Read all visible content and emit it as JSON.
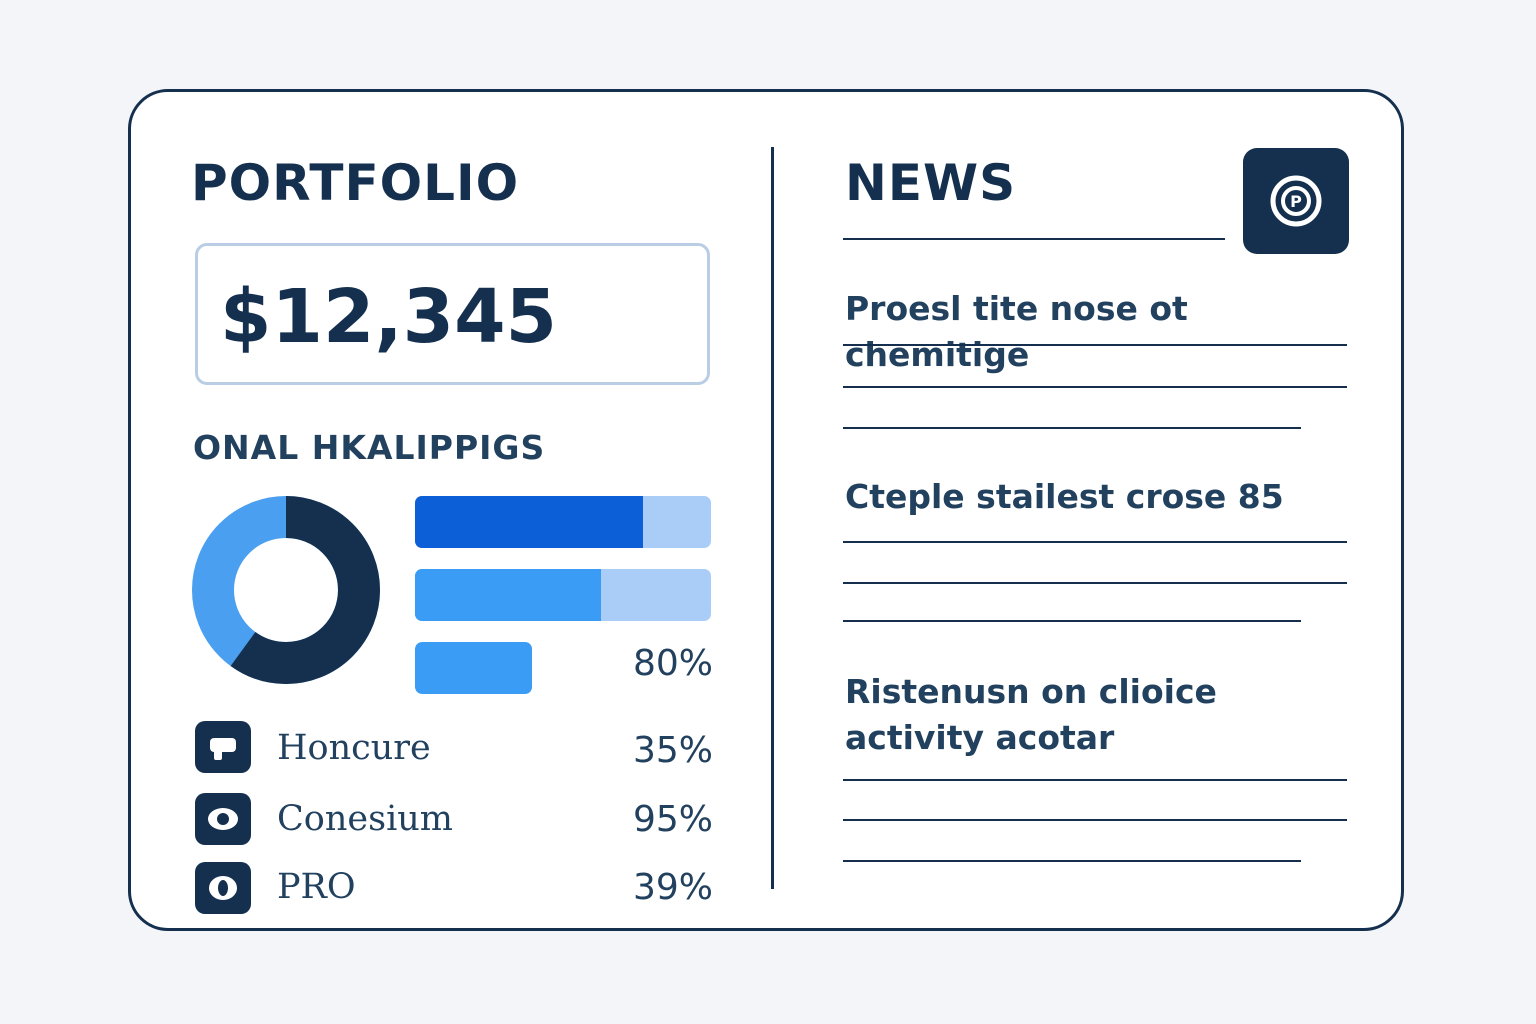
{
  "portfolio": {
    "title": "PORTFOLIO",
    "total_value": "$12,345",
    "holdings_title": "ONAL HKALIPPIGS",
    "allocation": {
      "primary_fraction": 0.6,
      "primary_color": "#15304f",
      "secondary_color": "#4a9ff0"
    },
    "bars": [
      {
        "fill_fraction": 0.77,
        "fill_color": "#0d5fd8",
        "track_color": "#a9cdf6"
      },
      {
        "fill_fraction": 0.63,
        "fill_color": "#3a9cf5",
        "track_color": "#a9cdf6"
      },
      {
        "fill_fraction": 0.3,
        "fill_color": "#3a9cf5",
        "track_color": "#ffffff"
      }
    ],
    "bar_percent_label": "80%",
    "holdings": [
      {
        "name": "Honcure",
        "percent": "35%",
        "icon": "flag-icon"
      },
      {
        "name": "Conesium",
        "percent": "95%",
        "icon": "eye-icon"
      },
      {
        "name": "PRO",
        "percent": "39%",
        "icon": "shield-icon"
      }
    ]
  },
  "news": {
    "title": "NEWS",
    "icon": "badge-icon",
    "items": [
      {
        "headline": "Proesl tite nose ot chemitige"
      },
      {
        "headline": "Cteple stailest crose 85"
      },
      {
        "headline": "Ristenusn on clioice activity acotar"
      }
    ]
  }
}
